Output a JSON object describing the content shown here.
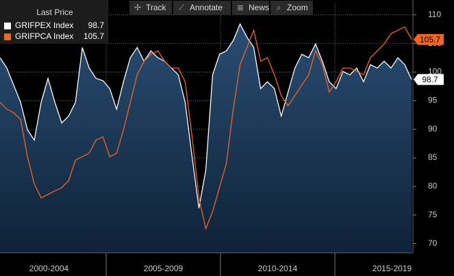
{
  "toolbar": [
    "Track",
    "Annotate",
    "News",
    "Zoom"
  ],
  "chart_data": {
    "type": "line",
    "legend_title": "Last Price",
    "periods": [
      "2000-2004",
      "2005-2009",
      "2010-2014",
      "2015-2019"
    ],
    "series": [
      {
        "name": "GRIFPEX Index",
        "color": "#ffffff",
        "area": true,
        "values": [
          102.5,
          100.7,
          97.7,
          94.7,
          89.9,
          88.1,
          94.7,
          98.9,
          94.7,
          91.1,
          92.3,
          94.7,
          104.3,
          100.7,
          98.9,
          98.5,
          97.1,
          93.5,
          98.3,
          102.5,
          104.3,
          101.9,
          103.7,
          102.5,
          101.9,
          100.7,
          99.5,
          94.7,
          85.2,
          76.2,
          82.8,
          99.5,
          103.1,
          103.7,
          105.5,
          108.4,
          106.1,
          104.3,
          97.1,
          98.3,
          97.1,
          92.3,
          96.5,
          100.7,
          103.1,
          102.5,
          104.9,
          101.9,
          98.3,
          97.1,
          100.1,
          99.5,
          100.7,
          98.3,
          101.3,
          100.7,
          101.9,
          100.7,
          102.5,
          101.3,
          98.7
        ]
      },
      {
        "name": "GRIFPCA Index",
        "color": "#f26522",
        "values": [
          94.7,
          93.5,
          92.9,
          91.7,
          85.2,
          80.4,
          78.0,
          78.6,
          79.2,
          79.8,
          81.0,
          84.6,
          85.2,
          85.8,
          88.1,
          88.7,
          85.2,
          85.8,
          89.9,
          94.7,
          99.5,
          101.9,
          103.1,
          103.7,
          101.9,
          100.7,
          100.7,
          98.3,
          88.7,
          78.0,
          72.6,
          75.6,
          79.8,
          84.0,
          93.5,
          101.3,
          104.3,
          107.3,
          101.9,
          102.5,
          99.5,
          95.9,
          94.1,
          95.9,
          97.7,
          99.5,
          103.7,
          101.3,
          96.5,
          98.3,
          100.7,
          100.7,
          100.1,
          99.5,
          102.5,
          103.7,
          104.9,
          106.7,
          107.3,
          107.9,
          105.7
        ]
      }
    ],
    "ylim": [
      68.4,
      112
    ],
    "yticks": [
      70,
      75,
      80,
      85,
      90,
      95,
      100,
      105,
      110
    ],
    "grid": true
  }
}
